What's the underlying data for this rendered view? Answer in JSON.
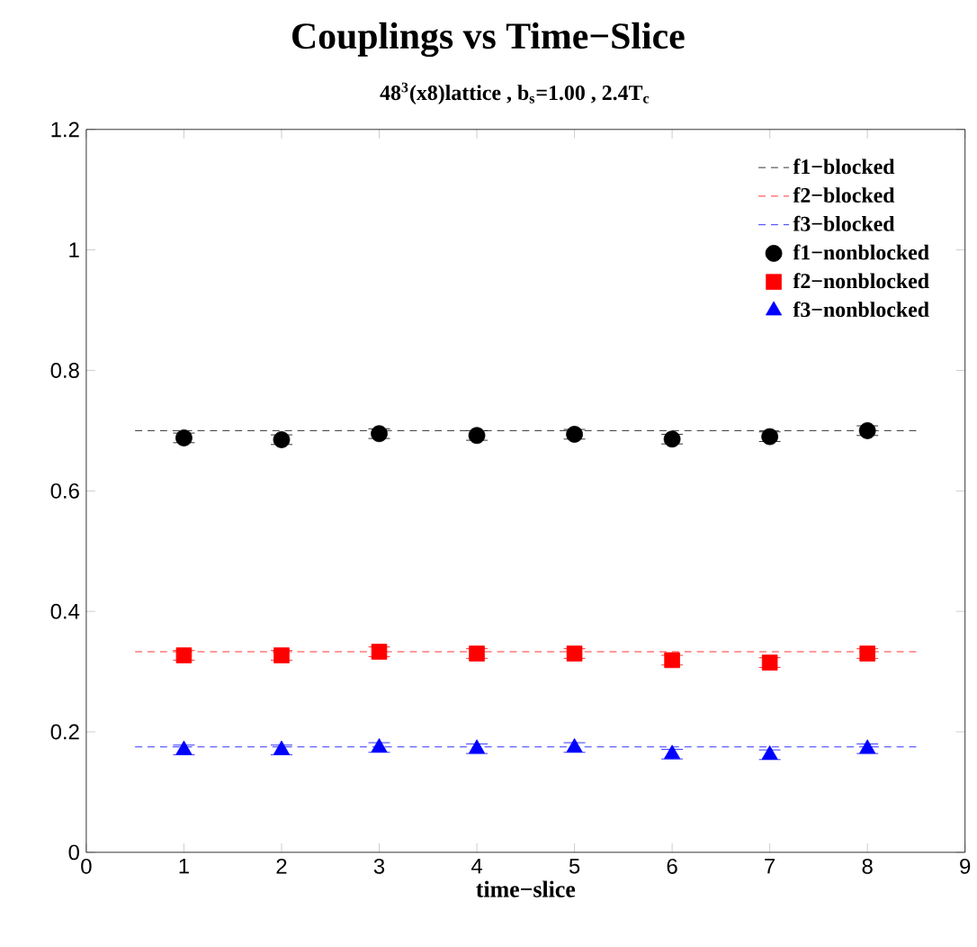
{
  "chart_data": {
    "type": "scatter",
    "title": "Couplings vs Time−Slice",
    "subtitle": "48$^{3}$(x8)lattice , b$_{s}$=1.00 , 2.4T$_{c}$",
    "xlabel": "time−slice",
    "xlim": [
      0,
      9
    ],
    "xticks": [
      0,
      1,
      2,
      3,
      4,
      5,
      6,
      7,
      8,
      9
    ],
    "ylim": [
      0,
      1.2
    ],
    "yticks": [
      0,
      0.2,
      0.4,
      0.6,
      0.8,
      1,
      1.2
    ],
    "grid": false,
    "legend": "top right",
    "series": [
      {
        "name": "f1−blocked",
        "type": "line",
        "line_style": "dashed",
        "marker": "none",
        "color": "#000000",
        "x": [
          0.5,
          8.5
        ],
        "values": [
          0.7,
          0.7
        ]
      },
      {
        "name": "f2−blocked",
        "type": "line",
        "line_style": "dashed",
        "marker": "none",
        "color": "#ff0000",
        "x": [
          0.5,
          8.5
        ],
        "values": [
          0.333,
          0.333
        ]
      },
      {
        "name": "f3−blocked",
        "type": "line",
        "line_style": "dashed",
        "marker": "none",
        "color": "#0000ff",
        "x": [
          0.5,
          8.5
        ],
        "values": [
          0.175,
          0.175
        ]
      },
      {
        "name": "f1−nonblocked",
        "marker": "circle",
        "color": "#000000",
        "x": [
          1,
          2,
          3,
          4,
          5,
          6,
          7,
          8
        ],
        "values": [
          0.688,
          0.685,
          0.695,
          0.692,
          0.694,
          0.686,
          0.69,
          0.7
        ],
        "errors": [
          0.008,
          0.008,
          0.008,
          0.008,
          0.008,
          0.008,
          0.008,
          0.008
        ]
      },
      {
        "name": "f2−nonblocked",
        "marker": "square",
        "color": "#ff0000",
        "x": [
          1,
          2,
          3,
          4,
          5,
          6,
          7,
          8
        ],
        "values": [
          0.327,
          0.327,
          0.333,
          0.33,
          0.33,
          0.319,
          0.315,
          0.33
        ],
        "errors": [
          0.008,
          0.008,
          0.008,
          0.008,
          0.008,
          0.008,
          0.008,
          0.008
        ]
      },
      {
        "name": "f3−nonblocked",
        "marker": "triangle",
        "color": "#0000ff",
        "x": [
          1,
          2,
          3,
          4,
          5,
          6,
          7,
          8
        ],
        "values": [
          0.17,
          0.17,
          0.174,
          0.172,
          0.174,
          0.163,
          0.162,
          0.172
        ],
        "errors": [
          0.008,
          0.008,
          0.008,
          0.008,
          0.008,
          0.008,
          0.008,
          0.008
        ]
      }
    ]
  }
}
